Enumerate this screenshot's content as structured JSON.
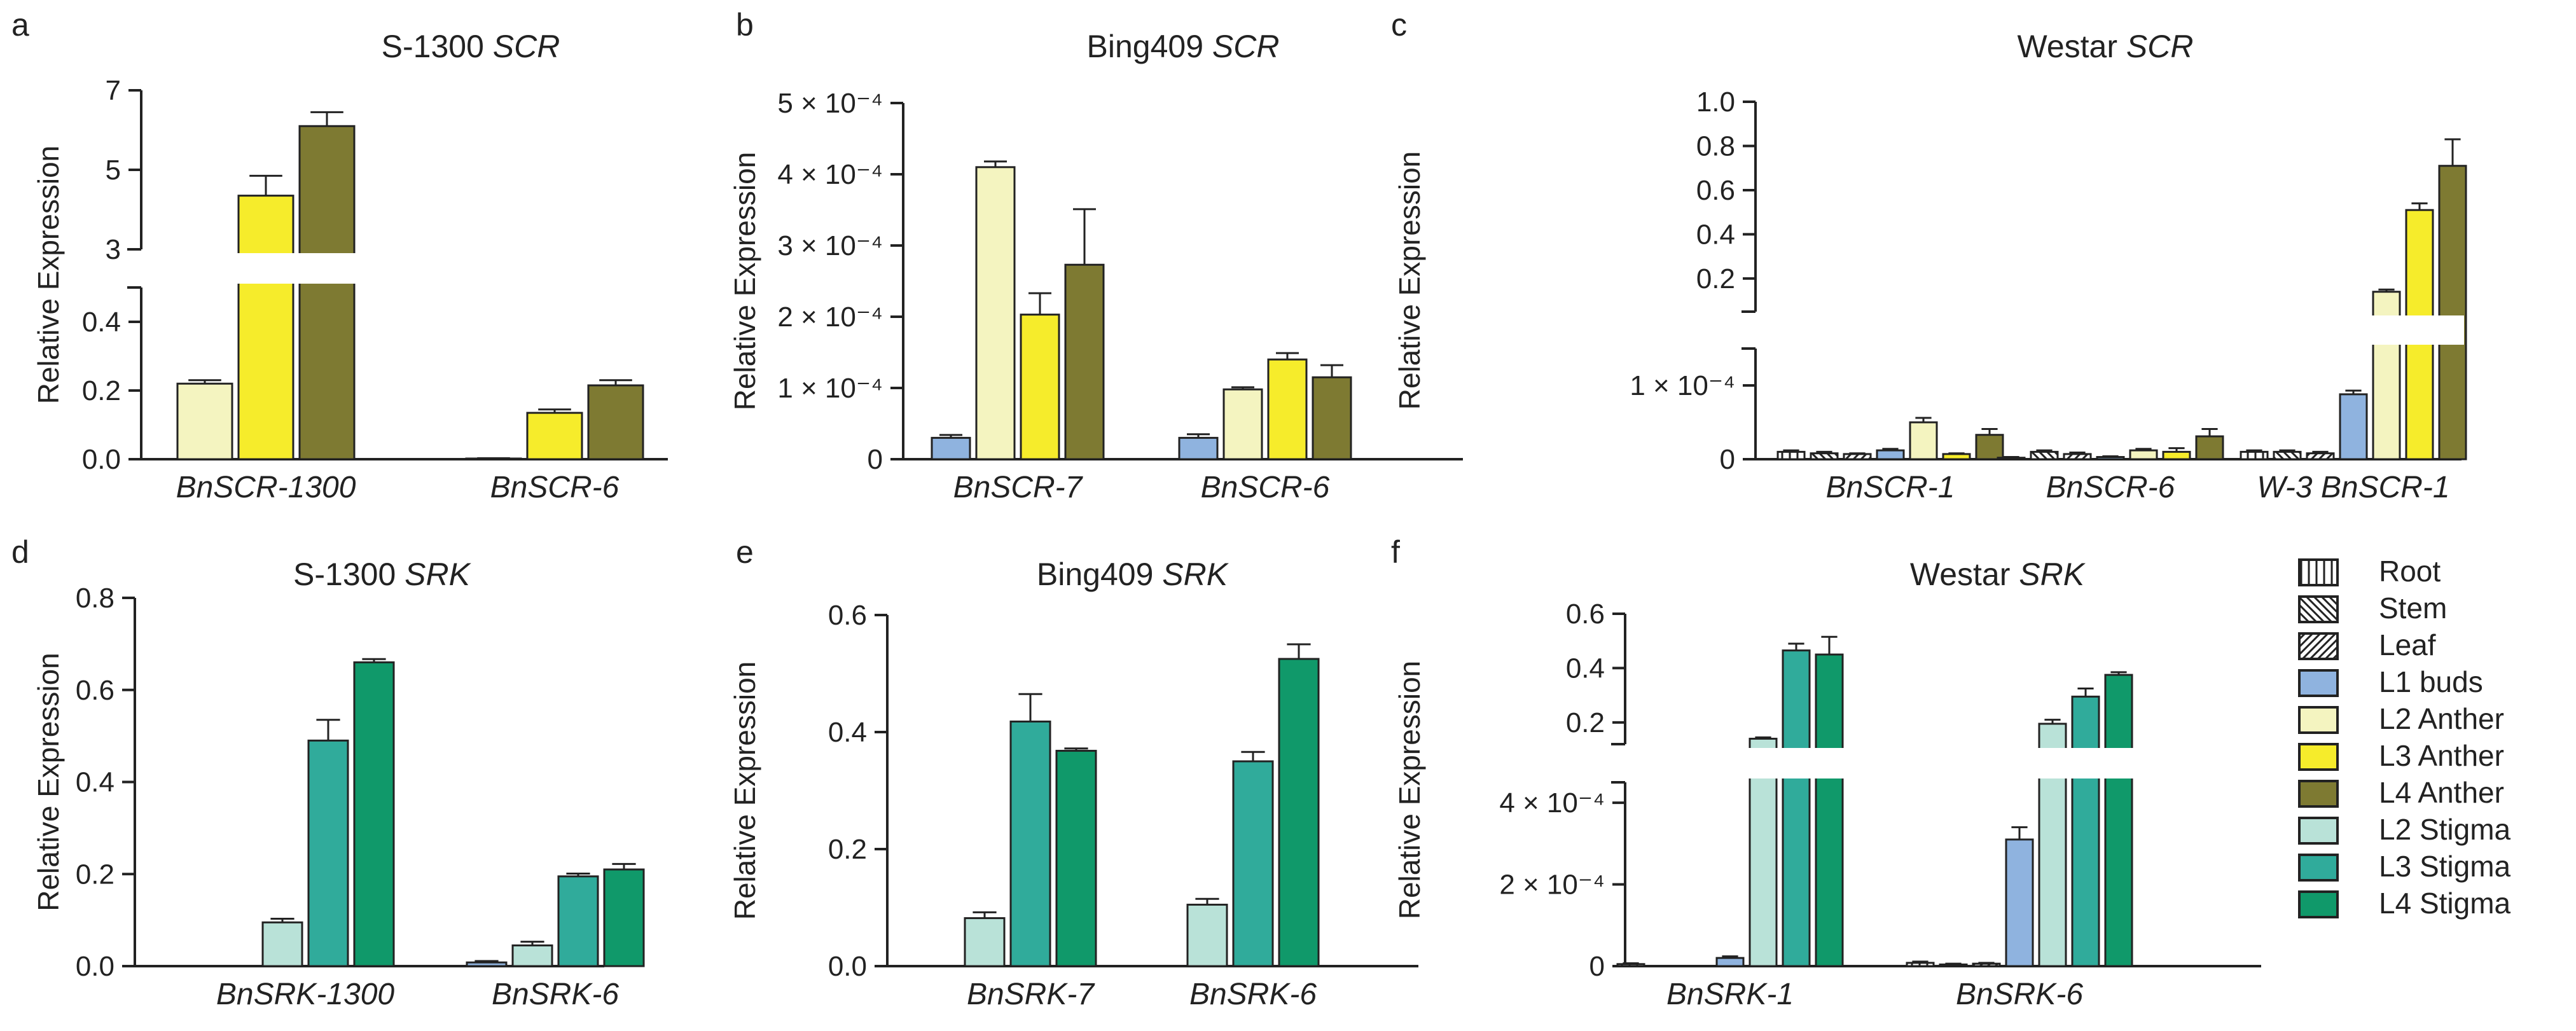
{
  "colors": {
    "Root": "#ffffff",
    "Stem": "#ffffff",
    "Leaf": "#ffffff",
    "L1 buds": "#8fb3df",
    "L2 Anther": "#f4f4c0",
    "L3 Anther": "#f6ec2b",
    "L4 Anther": "#7e7a32",
    "L2 Stigma": "#b9e2d8",
    "L3 Stigma": "#30ab9b",
    "L4 Stigma": "#10996a"
  },
  "legend": {
    "items": [
      {
        "label": "Root",
        "pattern": "vertical"
      },
      {
        "label": "Stem",
        "pattern": "back-diagonal"
      },
      {
        "label": "Leaf",
        "pattern": "forward-diagonal"
      },
      {
        "label": "L1 buds",
        "pattern": "solid"
      },
      {
        "label": "L2 Anther",
        "pattern": "solid"
      },
      {
        "label": "L3 Anther",
        "pattern": "solid"
      },
      {
        "label": "L4 Anther",
        "pattern": "solid"
      },
      {
        "label": "L2 Stigma",
        "pattern": "solid"
      },
      {
        "label": "L3 Stigma",
        "pattern": "solid"
      },
      {
        "label": "L4 Stigma",
        "pattern": "solid"
      }
    ]
  },
  "chart_data": [
    {
      "panel": "a",
      "type": "bar",
      "title": "S-1300",
      "title_gene": "SCR",
      "ylabel": "Relative Expression",
      "axis_break": {
        "lower": [
          0,
          0.5
        ],
        "upper": [
          3,
          7
        ]
      },
      "lower_ticks": [
        "0.0",
        "0.2",
        "0.4"
      ],
      "lower_tick_values": [
        0,
        0.2,
        0.4
      ],
      "upper_ticks": [
        "3",
        "5",
        "7"
      ],
      "upper_tick_values": [
        3,
        5,
        7
      ],
      "categories": [
        "BnSCR-1300",
        "BnSCR-6"
      ],
      "series": [
        {
          "name": "L2 Anther",
          "values": [
            0.22,
            0.002
          ],
          "errors": [
            0.01,
            0.001
          ]
        },
        {
          "name": "L3 Anther",
          "values": [
            4.35,
            0.135
          ],
          "errors": [
            0.5,
            0.01
          ]
        },
        {
          "name": "L4 Anther",
          "values": [
            6.1,
            0.215
          ],
          "errors": [
            0.35,
            0.015
          ]
        }
      ]
    },
    {
      "panel": "b",
      "type": "bar",
      "title": "Bing409",
      "title_gene": "SCR",
      "ylabel": "Relative Expression",
      "ylim": [
        0,
        0.0005
      ],
      "ticks": [
        "0",
        "1 × 10⁻⁴",
        "2 × 10⁻⁴",
        "3 × 10⁻⁴",
        "4 × 10⁻⁴",
        "5 × 10⁻⁴"
      ],
      "tick_values": [
        0,
        0.0001,
        0.0002,
        0.0003,
        0.0004,
        0.0005
      ],
      "categories": [
        "BnSCR-7",
        "BnSCR-6"
      ],
      "series": [
        {
          "name": "L1 buds",
          "values": [
            3e-05,
            3e-05
          ],
          "errors": [
            4e-06,
            5e-06
          ]
        },
        {
          "name": "L2 Anther",
          "values": [
            0.00041,
            9.8e-05
          ],
          "errors": [
            8e-06,
            3e-06
          ]
        },
        {
          "name": "L3 Anther",
          "values": [
            0.000203,
            0.00014
          ],
          "errors": [
            3e-05,
            9e-06
          ]
        },
        {
          "name": "L4 Anther",
          "values": [
            0.000273,
            0.000115
          ],
          "errors": [
            7.8e-05,
            1.7e-05
          ]
        }
      ]
    },
    {
      "panel": "c",
      "type": "bar",
      "title": "Westar",
      "title_gene": "SCR",
      "ylabel": "Relative Expression",
      "axis_break": {
        "lower": [
          0,
          0.00015
        ],
        "upper": [
          0.05,
          1.0
        ]
      },
      "lower_ticks": [
        "0",
        "1 × 10⁻⁴"
      ],
      "lower_tick_values": [
        0,
        0.0001
      ],
      "upper_ticks": [
        "0.2",
        "0.4",
        "0.6",
        "0.8",
        "1.0"
      ],
      "upper_tick_values": [
        0.2,
        0.4,
        0.6,
        0.8,
        1.0
      ],
      "categories": [
        "BnSCR-1",
        "BnSCR-6",
        "W-3 BnSCR-1"
      ],
      "series": [
        {
          "name": "Root",
          "values": [
            1e-05,
            2e-06,
            1e-05
          ],
          "errors": [
            2e-06,
            1e-06,
            2e-06
          ]
        },
        {
          "name": "Stem",
          "values": [
            8e-06,
            1e-05,
            1e-05
          ],
          "errors": [
            2e-06,
            2e-06,
            2e-06
          ]
        },
        {
          "name": "Leaf",
          "values": [
            7e-06,
            7e-06,
            8e-06
          ],
          "errors": [
            1e-06,
            2e-06,
            2e-06
          ]
        },
        {
          "name": "L1 buds",
          "values": [
            1.2e-05,
            3e-06,
            8.8e-05
          ],
          "errors": [
            2e-06,
            1e-06,
            5e-06
          ]
        },
        {
          "name": "L2 Anther",
          "values": [
            5e-05,
            1.2e-05,
            0.14
          ],
          "errors": [
            6e-06,
            2e-06,
            0.01
          ]
        },
        {
          "name": "L3 Anther",
          "values": [
            7e-06,
            1e-05,
            0.51
          ],
          "errors": [
            1e-06,
            5e-06,
            0.03
          ]
        },
        {
          "name": "L4 Anther",
          "values": [
            3.3e-05,
            3.1e-05,
            0.71
          ],
          "errors": [
            8e-06,
            1e-05,
            0.12
          ]
        }
      ]
    },
    {
      "panel": "d",
      "type": "bar",
      "title": "S-1300",
      "title_gene": "SRK",
      "ylabel": "Relative Expression",
      "ylim": [
        0,
        0.8
      ],
      "ticks": [
        "0.0",
        "0.2",
        "0.4",
        "0.6",
        "0.8"
      ],
      "tick_values": [
        0,
        0.2,
        0.4,
        0.6,
        0.8
      ],
      "categories": [
        "BnSRK-1300",
        "BnSRK-6"
      ],
      "series": [
        {
          "name": "L1 buds",
          "values": [
            0.0,
            0.008
          ],
          "errors": [
            0.0,
            0.003
          ]
        },
        {
          "name": "L2 Stigma",
          "values": [
            0.095,
            0.045
          ],
          "errors": [
            0.008,
            0.008
          ]
        },
        {
          "name": "L3 Stigma",
          "values": [
            0.49,
            0.195
          ],
          "errors": [
            0.045,
            0.006
          ]
        },
        {
          "name": "L4 Stigma",
          "values": [
            0.66,
            0.21
          ],
          "errors": [
            0.007,
            0.012
          ]
        }
      ]
    },
    {
      "panel": "e",
      "type": "bar",
      "title": "Bing409",
      "title_gene": "SRK",
      "ylabel": "Relative Expression",
      "ylim": [
        0,
        0.6
      ],
      "ticks": [
        "0.0",
        "0.2",
        "0.4",
        "0.6"
      ],
      "tick_values": [
        0,
        0.2,
        0.4,
        0.6
      ],
      "categories": [
        "BnSRK-7",
        "BnSRK-6"
      ],
      "series": [
        {
          "name": "L2 Stigma",
          "values": [
            0.082,
            0.105
          ],
          "errors": [
            0.01,
            0.01
          ]
        },
        {
          "name": "L3 Stigma",
          "values": [
            0.418,
            0.35
          ],
          "errors": [
            0.047,
            0.016
          ]
        },
        {
          "name": "L4 Stigma",
          "values": [
            0.368,
            0.525
          ],
          "errors": [
            0.004,
            0.025
          ]
        }
      ]
    },
    {
      "panel": "f",
      "type": "bar",
      "title": "Westar",
      "title_gene": "SRK",
      "ylabel": "Relative Expression",
      "axis_break": {
        "lower": [
          0,
          0.00045
        ],
        "upper": [
          0.12,
          0.6
        ]
      },
      "lower_ticks": [
        "0",
        "2 × 10⁻⁴",
        "4 × 10⁻⁴"
      ],
      "lower_tick_values": [
        0,
        0.0002,
        0.0004
      ],
      "upper_ticks": [
        "0.2",
        "0.4",
        "0.6"
      ],
      "upper_tick_values": [
        0.2,
        0.4,
        0.6
      ],
      "categories": [
        "BnSRK-1",
        "BnSRK-6"
      ],
      "series": [
        {
          "name": "Root",
          "values": [
            5e-06,
            8e-06
          ],
          "errors": [
            2e-06,
            3e-06
          ]
        },
        {
          "name": "Stem",
          "values": [
            0.0,
            4e-06
          ],
          "errors": [
            0.0,
            2e-06
          ]
        },
        {
          "name": "Leaf",
          "values": [
            0.0,
            6e-06
          ],
          "errors": [
            0.0,
            2e-06
          ]
        },
        {
          "name": "L1 buds",
          "values": [
            2e-05,
            0.00031
          ],
          "errors": [
            4e-06,
            3e-05
          ]
        },
        {
          "name": "L2 Stigma",
          "values": [
            0.14,
            0.195
          ],
          "errors": [
            0.005,
            0.015
          ]
        },
        {
          "name": "L3 Stigma",
          "values": [
            0.465,
            0.295
          ],
          "errors": [
            0.025,
            0.03
          ]
        },
        {
          "name": "L4 Stigma",
          "values": [
            0.45,
            0.375
          ],
          "errors": [
            0.065,
            0.01
          ]
        }
      ]
    }
  ]
}
